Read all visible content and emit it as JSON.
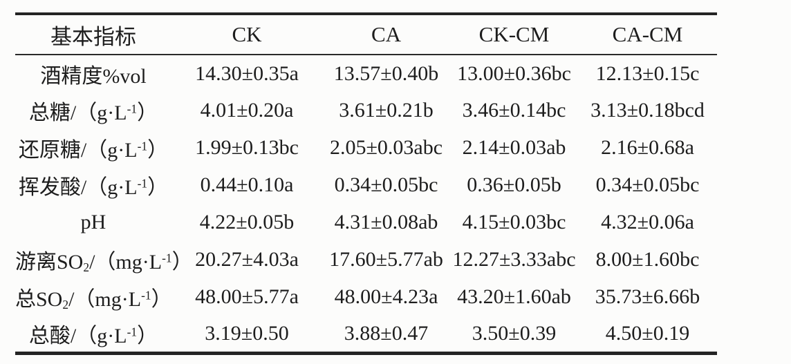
{
  "table": {
    "text_color": "#1d1d1d",
    "rule_color": "#242424",
    "columns": [
      "基本指标",
      "CK",
      "CA",
      "CK-CM",
      "CA-CM"
    ],
    "rows": [
      {
        "label": [
          {
            "t": "酒精度%vol"
          }
        ],
        "values": [
          "14.30±0.35a",
          "13.57±0.40b",
          "13.00±0.36bc",
          "12.13±0.15c"
        ]
      },
      {
        "label": [
          {
            "t": "总糖/（g·L"
          },
          {
            "t": "-1",
            "sup": true
          },
          {
            "t": "）"
          }
        ],
        "values": [
          "4.01±0.20a",
          "3.61±0.21b",
          "3.46±0.14bc",
          "3.13±0.18bcd"
        ]
      },
      {
        "label": [
          {
            "t": "还原糖/（g·L"
          },
          {
            "t": "-1",
            "sup": true
          },
          {
            "t": "）"
          }
        ],
        "values": [
          "1.99±0.13bc",
          "2.05±0.03abc",
          "2.14±0.03ab",
          "2.16±0.68a"
        ]
      },
      {
        "label": [
          {
            "t": "挥发酸/（g·L"
          },
          {
            "t": "-1",
            "sup": true
          },
          {
            "t": "）"
          }
        ],
        "values": [
          "0.44±0.10a",
          "0.34±0.05bc",
          "0.36±0.05b",
          "0.34±0.05bc"
        ]
      },
      {
        "label": [
          {
            "t": "pH"
          }
        ],
        "values": [
          "4.22±0.05b",
          "4.31±0.08ab",
          "4.15±0.03bc",
          "4.32±0.06a"
        ]
      },
      {
        "label": [
          {
            "t": "游离SO"
          },
          {
            "t": "2",
            "sub": true
          },
          {
            "t": "/（mg·L"
          },
          {
            "t": "-1",
            "sup": true
          },
          {
            "t": "）"
          }
        ],
        "values": [
          "20.27±4.03a",
          "17.60±5.77ab",
          "12.27±3.33abc",
          "8.00±1.60bc"
        ]
      },
      {
        "label": [
          {
            "t": "总SO"
          },
          {
            "t": "2",
            "sub": true
          },
          {
            "t": "/（mg·L"
          },
          {
            "t": "-1",
            "sup": true
          },
          {
            "t": "）"
          }
        ],
        "values": [
          "48.00±5.77a",
          "48.00±4.23a",
          "43.20±1.60ab",
          "35.73±6.66b"
        ]
      },
      {
        "label": [
          {
            "t": "总酸/（g·L"
          },
          {
            "t": "-1",
            "sup": true
          },
          {
            "t": "）"
          }
        ],
        "values": [
          "3.19±0.50",
          "3.88±0.47",
          "3.50±0.39",
          "4.50±0.19"
        ]
      }
    ]
  }
}
